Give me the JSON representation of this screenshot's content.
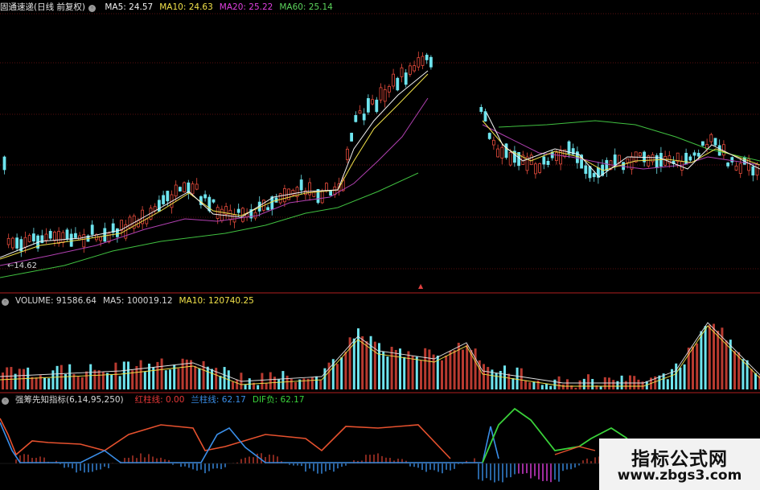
{
  "main_panel": {
    "stock_title": "固通速递(日线 前复权)",
    "ma_labels": [
      {
        "text": "MA5: 24.57",
        "color": "#f2f2f2"
      },
      {
        "text": "MA10: 24.63",
        "color": "#f2e24a"
      },
      {
        "text": "MA20: 25.22",
        "color": "#e040e0"
      },
      {
        "text": "MA60: 25.14",
        "color": "#5cd45c"
      }
    ],
    "low_marker": "←14.62"
  },
  "volume_panel": {
    "labels": [
      {
        "text": "VOLUME: 91586.64",
        "color": "#d8d8d8"
      },
      {
        "text": "MA5: 100019.12",
        "color": "#d8d8d8"
      },
      {
        "text": "MA10: 120740.25",
        "color": "#f2e24a"
      }
    ]
  },
  "indicator_panel": {
    "name": "强筹先知指标(6,14,95,250)",
    "labels": [
      {
        "text": "红柱线: 0.00",
        "color": "#e83838"
      },
      {
        "text": "兰柱线: 62.17",
        "color": "#3a8ee8"
      },
      {
        "text": "DIF负: 62.17",
        "color": "#3ad23a"
      }
    ]
  },
  "watermark": {
    "title": "指标公式网",
    "url": "www.zbgs3.com"
  },
  "colors": {
    "up": "#e84c3c",
    "down": "#6ee4ee",
    "ma5": "#f2f2f2",
    "ma10": "#f2e24a",
    "ma20": "#b040b0",
    "ma60": "#40c040",
    "red_line": "#e6512e",
    "blue_line": "#3a8ee8",
    "green_line": "#3ad23a",
    "magenta": "#e040e0"
  },
  "chart_data": {
    "type": "line",
    "description_series": [
      {
        "name": "MA5",
        "values": [
          24.57
        ]
      },
      {
        "name": "MA10",
        "values": [
          24.63
        ]
      },
      {
        "name": "MA20",
        "values": [
          25.22
        ]
      },
      {
        "name": "MA60",
        "values": [
          25.14
        ]
      }
    ],
    "price_low": 14.62,
    "volume": {
      "last": 91586.64,
      "ma5": 100019.12,
      "ma10": 120740.25
    },
    "indicator": {
      "red": 0.0,
      "blue": 62.17,
      "dif_negative": 62.17
    }
  }
}
